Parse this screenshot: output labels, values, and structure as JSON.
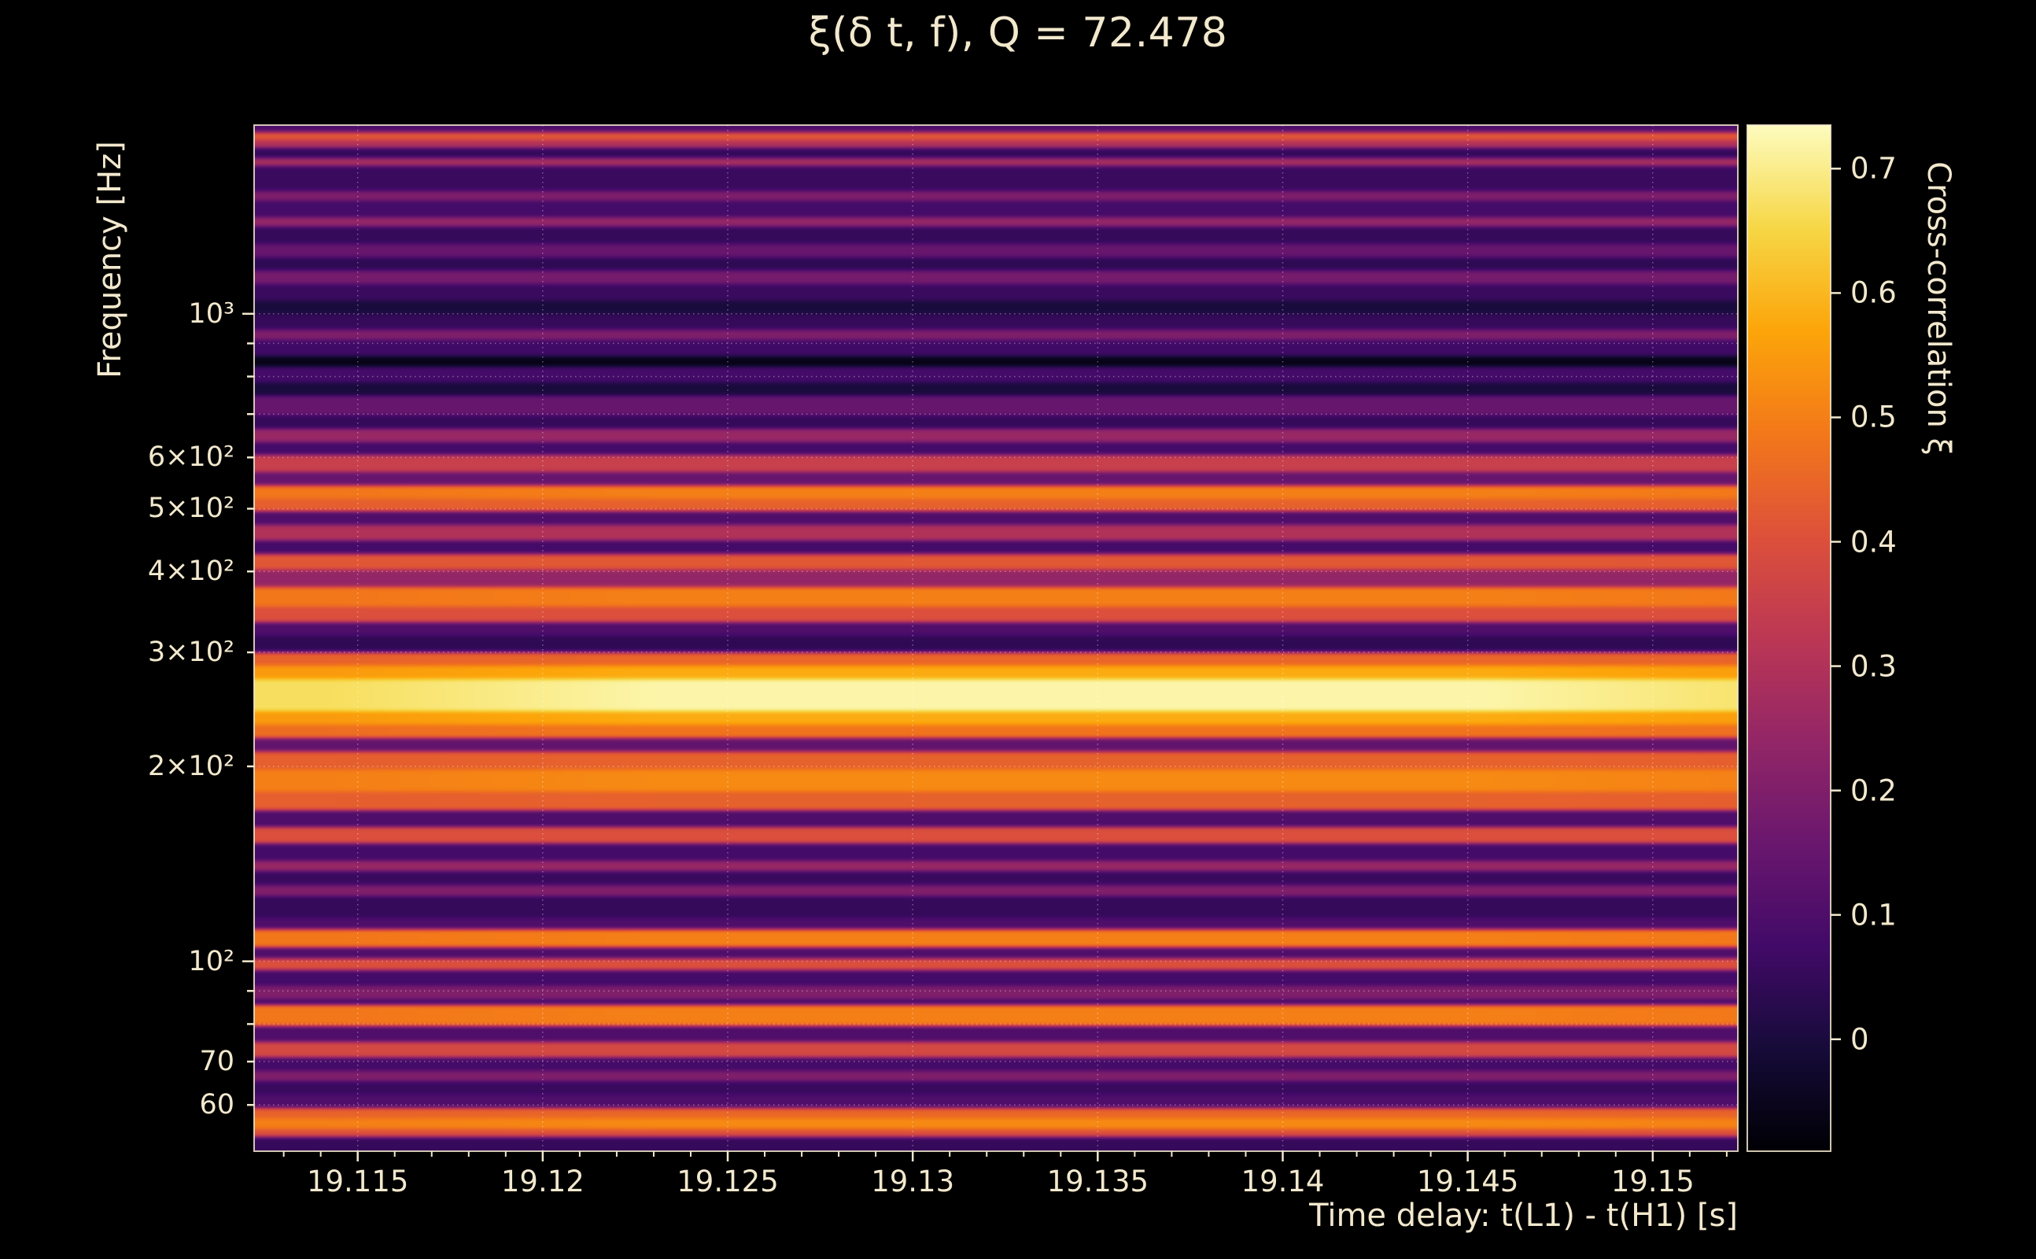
{
  "title": "ξ(δ t, f), Q = 72.478",
  "colors": {
    "background": "#000000",
    "text": "#f2e8cd",
    "grid": "#ffffff",
    "spine": "#f2e8cd"
  },
  "axes": {
    "x": {
      "label": "Time delay: t(L1) - t(H1) [s]",
      "ticks": [
        {
          "value": 19.115,
          "label": "19.115"
        },
        {
          "value": 19.12,
          "label": "19.12"
        },
        {
          "value": 19.125,
          "label": "19.125"
        },
        {
          "value": 19.13,
          "label": "19.13"
        },
        {
          "value": 19.135,
          "label": "19.135"
        },
        {
          "value": 19.14,
          "label": "19.14"
        },
        {
          "value": 19.145,
          "label": "19.145"
        },
        {
          "value": 19.15,
          "label": "19.15"
        }
      ]
    },
    "y": {
      "label": "Frequency [Hz]",
      "scale": "log",
      "ticks": [
        {
          "value": 1000,
          "label": "10³",
          "major": true
        },
        {
          "value": 900,
          "label": "",
          "major": false
        },
        {
          "value": 800,
          "label": "",
          "major": false
        },
        {
          "value": 700,
          "label": "",
          "major": false
        },
        {
          "value": 600,
          "label": "6×10²",
          "major": false
        },
        {
          "value": 500,
          "label": "5×10²",
          "major": false
        },
        {
          "value": 400,
          "label": "4×10²",
          "major": false
        },
        {
          "value": 300,
          "label": "3×10²",
          "major": false
        },
        {
          "value": 200,
          "label": "2×10²",
          "major": false
        },
        {
          "value": 100,
          "label": "10²",
          "major": true
        },
        {
          "value": 90,
          "label": "",
          "major": false
        },
        {
          "value": 80,
          "label": "",
          "major": false
        },
        {
          "value": 70,
          "label": "70",
          "major": false
        },
        {
          "value": 60,
          "label": "60",
          "major": false
        }
      ]
    },
    "colorbar": {
      "label": "Cross-correlation ξ",
      "ticks": [
        {
          "value": 0.7,
          "label": "0.7"
        },
        {
          "value": 0.6,
          "label": "0.6"
        },
        {
          "value": 0.5,
          "label": "0.5"
        },
        {
          "value": 0.4,
          "label": "0.4"
        },
        {
          "value": 0.3,
          "label": "0.3"
        },
        {
          "value": 0.2,
          "label": "0.2"
        },
        {
          "value": 0.1,
          "label": "0.1"
        },
        {
          "value": 0,
          "label": "0"
        }
      ]
    }
  },
  "chart_data": {
    "type": "heatmap",
    "title": "ξ(δ t, f), Q = 72.478",
    "xlabel": "Time delay: t(L1) - t(H1) [s]",
    "ylabel": "Frequency [Hz]",
    "zlabel": "Cross-correlation ξ",
    "x_scale": "linear",
    "y_scale": "log",
    "x_range": [
      19.1122,
      19.1523
    ],
    "y_range_hz": [
      50.9,
      1956
    ],
    "z_range": [
      -0.09,
      0.735
    ],
    "colormap": "inferno",
    "x_ticks": [
      19.115,
      19.12,
      19.125,
      19.13,
      19.135,
      19.14,
      19.145,
      19.15
    ],
    "y_ticks": [
      1000,
      600,
      500,
      400,
      300,
      200,
      100,
      70,
      60
    ],
    "colorbar_ticks": [
      0,
      0.1,
      0.2,
      0.3,
      0.4,
      0.5,
      0.6,
      0.7
    ],
    "note": "Cross-correlation is nearly constant in time delay; structure is horizontal frequency bands. Bands listed top (high f) to bottom (low f).",
    "bands_format": [
      "f_high_hz",
      "f_low_hz",
      "xi"
    ],
    "bands": [
      [
        1955,
        1909,
        0.1
      ],
      [
        1909,
        1856,
        0.42
      ],
      [
        1856,
        1805,
        0.3
      ],
      [
        1805,
        1738,
        0.05
      ],
      [
        1738,
        1690,
        0.28
      ],
      [
        1690,
        1546,
        0.06
      ],
      [
        1546,
        1496,
        0.2
      ],
      [
        1496,
        1408,
        0.08
      ],
      [
        1408,
        1362,
        0.24
      ],
      [
        1362,
        1282,
        0.05
      ],
      [
        1282,
        1223,
        0.15
      ],
      [
        1223,
        1167,
        0.04
      ],
      [
        1167,
        1113,
        0.18
      ],
      [
        1113,
        1048,
        0.06
      ],
      [
        1048,
        1000,
        0.0
      ],
      [
        1000,
        945,
        0.05
      ],
      [
        945,
        910,
        0.2
      ],
      [
        910,
        860,
        0.07
      ],
      [
        860,
        829,
        -0.06
      ],
      [
        829,
        783,
        0.08
      ],
      [
        783,
        747,
        0.0
      ],
      [
        747,
        697,
        0.15
      ],
      [
        697,
        665,
        0.05
      ],
      [
        665,
        634,
        0.25
      ],
      [
        634,
        605,
        0.08
      ],
      [
        605,
        570,
        0.35
      ],
      [
        570,
        543,
        0.15
      ],
      [
        543,
        518,
        0.5
      ],
      [
        518,
        495,
        0.44
      ],
      [
        495,
        472,
        0.1
      ],
      [
        472,
        446,
        0.3
      ],
      [
        446,
        426,
        0.08
      ],
      [
        426,
        403,
        0.42
      ],
      [
        403,
        379,
        0.24
      ],
      [
        379,
        353,
        0.5
      ],
      [
        353,
        334,
        0.4
      ],
      [
        334,
        318,
        0.1
      ],
      [
        318,
        300,
        0.04
      ],
      [
        300,
        286,
        0.45
      ],
      [
        286,
        273,
        0.58
      ],
      [
        273,
        243,
        0.72
      ],
      [
        243,
        232,
        0.58
      ],
      [
        232,
        221,
        0.48
      ],
      [
        221,
        211,
        0.14
      ],
      [
        211,
        198,
        0.44
      ],
      [
        198,
        183,
        0.52
      ],
      [
        183,
        171,
        0.44
      ],
      [
        171,
        161,
        0.1
      ],
      [
        161,
        152,
        0.4
      ],
      [
        152,
        143,
        0.08
      ],
      [
        143,
        138,
        0.25
      ],
      [
        138,
        131,
        0.06
      ],
      [
        131,
        126,
        0.2
      ],
      [
        126,
        117,
        0.05
      ],
      [
        117,
        112,
        0.1
      ],
      [
        112,
        105,
        0.5
      ],
      [
        105,
        101,
        0.1
      ],
      [
        101,
        96.8,
        0.4
      ],
      [
        96.8,
        91.5,
        0.08
      ],
      [
        91.5,
        87.3,
        0.2
      ],
      [
        87.3,
        85.7,
        0.08
      ],
      [
        85.7,
        79.5,
        0.5
      ],
      [
        79.5,
        75.1,
        0.1
      ],
      [
        75.1,
        71,
        0.38
      ],
      [
        71,
        67.8,
        0.08
      ],
      [
        67.8,
        65.3,
        0.2
      ],
      [
        65.3,
        62.3,
        0.06
      ],
      [
        62.3,
        59.4,
        0.1
      ],
      [
        59.4,
        57.2,
        0.45
      ],
      [
        57.2,
        55.1,
        0.52
      ],
      [
        55.1,
        53.6,
        0.4
      ],
      [
        53.6,
        50.9,
        0.05
      ]
    ]
  }
}
